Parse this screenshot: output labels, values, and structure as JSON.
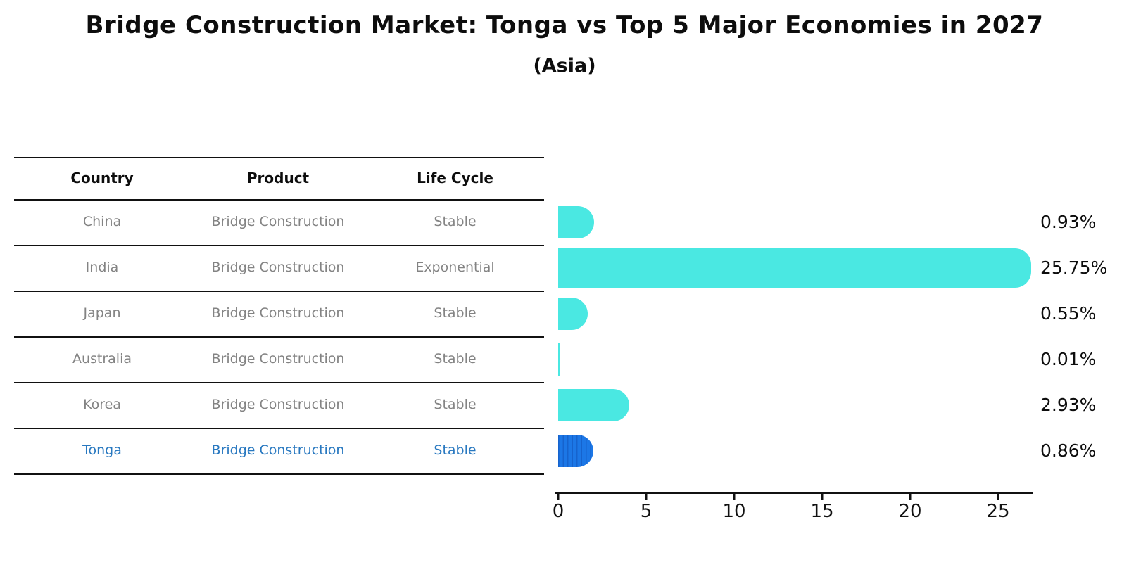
{
  "title": "Bridge Construction Market: Tonga vs Top 5 Major Economies in 2027",
  "subtitle": "(Asia)",
  "table": {
    "headers": [
      "Country",
      "Product",
      "Life Cycle"
    ],
    "rows": [
      {
        "country": "China",
        "product": "Bridge Construction",
        "life_cycle": "Stable",
        "highlight": false
      },
      {
        "country": "India",
        "product": "Bridge Construction",
        "life_cycle": "Exponential",
        "highlight": false
      },
      {
        "country": "Japan",
        "product": "Bridge Construction",
        "life_cycle": "Stable",
        "highlight": false
      },
      {
        "country": "Australia",
        "product": "Bridge Construction",
        "life_cycle": "Stable",
        "highlight": false
      },
      {
        "country": "Korea",
        "product": "Bridge Construction",
        "life_cycle": "Stable",
        "highlight": false
      },
      {
        "country": "Tonga",
        "product": "Bridge Construction",
        "life_cycle": "Stable",
        "highlight": true
      }
    ]
  },
  "chart_data": {
    "type": "bar",
    "orientation": "horizontal",
    "title": "Bridge Construction Market: Tonga vs Top 5 Major Economies in 2027",
    "subtitle": "(Asia)",
    "categories": [
      "China",
      "India",
      "Japan",
      "Australia",
      "Korea",
      "Tonga"
    ],
    "values": [
      0.93,
      25.75,
      0.55,
      0.01,
      2.93,
      0.86
    ],
    "value_labels": [
      "0.93%",
      "25.75%",
      "0.55%",
      "0.01%",
      "2.93%",
      "0.86%"
    ],
    "x_ticks": [
      "0",
      "5",
      "10",
      "15",
      "20",
      "25"
    ],
    "x_tick_values": [
      0,
      5,
      10,
      15,
      20,
      25
    ],
    "xlim": [
      0,
      27
    ],
    "grid": false,
    "legend": "none",
    "xlabel": "",
    "ylabel": "",
    "bar_color": "#4ae8e2",
    "highlight_bar_color": "#1c77e6",
    "highlight_text_color": "#2878c0",
    "highlight_index": 5,
    "highlight_hatch": "vertical-lines"
  }
}
